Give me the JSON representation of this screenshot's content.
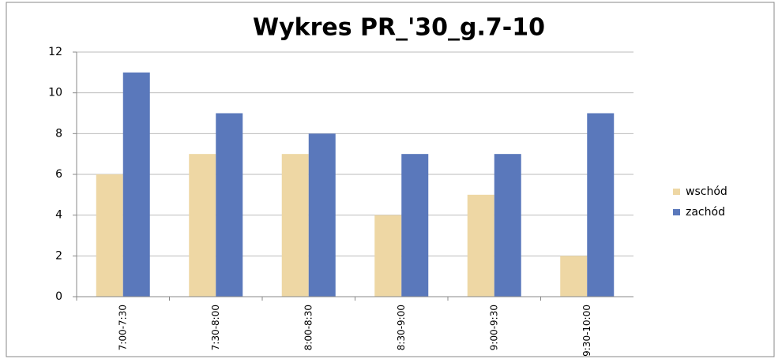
{
  "chart_data": {
    "type": "bar",
    "title": "Wykres PR_'30_g.7-10",
    "categories": [
      "7:00-7:30",
      "7:30-8:00",
      "8:00-8:30",
      "8:30-9:00",
      "9:00-9:30",
      "9:30-10:00"
    ],
    "series": [
      {
        "name": "wschód",
        "color": "#eed7a4",
        "values": [
          6,
          7,
          7,
          4,
          5,
          2
        ]
      },
      {
        "name": "zachód",
        "color": "#5a78bb",
        "values": [
          11,
          9,
          8,
          7,
          7,
          9
        ]
      }
    ],
    "ylim": [
      0,
      12
    ],
    "yticks": [
      0,
      2,
      4,
      6,
      8,
      10,
      12
    ],
    "grid": true,
    "legend": "right"
  }
}
